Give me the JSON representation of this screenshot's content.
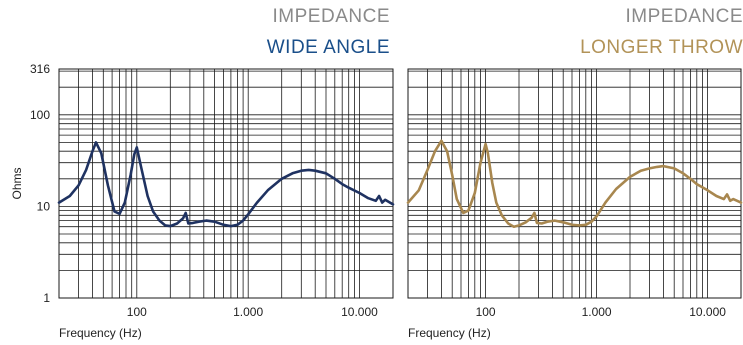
{
  "chart_data": [
    {
      "type": "line",
      "title": "IMPEDANCE",
      "subtitle": "WIDE ANGLE",
      "color": "#1f3261",
      "subtitle_color": "#1a4f8a",
      "xlabel": "Frequency (Hz)",
      "ylabel": "Ohms",
      "xscale": "log",
      "yscale": "log",
      "xlim": [
        20,
        20000
      ],
      "ylim": [
        1,
        316
      ],
      "x_ticks": [
        {
          "value": 100,
          "label": "100"
        },
        {
          "value": 1000,
          "label": "1.000"
        },
        {
          "value": 10000,
          "label": "10.000"
        }
      ],
      "y_ticks": [
        {
          "value": 1,
          "label": "1"
        },
        {
          "value": 10,
          "label": "10"
        },
        {
          "value": 100,
          "label": "100"
        },
        {
          "value": 316,
          "label": "316"
        }
      ],
      "grid": true,
      "series": [
        {
          "x": [
            20,
            25,
            30,
            35,
            40,
            43,
            48,
            55,
            63,
            70,
            78,
            88,
            95,
            100,
            110,
            125,
            140,
            160,
            180,
            200,
            230,
            260,
            275,
            290,
            320,
            360,
            420,
            500,
            600,
            700,
            800,
            900,
            1000,
            1200,
            1500,
            2000,
            2500,
            3000,
            3500,
            4000,
            5000,
            6000,
            7000,
            8000,
            10000,
            12000,
            14000,
            15000,
            16000,
            17000,
            20000
          ],
          "y": [
            11,
            13,
            17,
            25,
            40,
            50,
            38,
            17,
            8.8,
            8.3,
            11,
            22,
            37,
            44,
            26,
            13,
            8.8,
            7,
            6.2,
            6.1,
            6.5,
            7.4,
            8.5,
            6.5,
            6.6,
            6.8,
            7,
            6.8,
            6.3,
            6.1,
            6.3,
            7,
            8.2,
            11,
            15,
            20,
            23,
            24.5,
            25,
            24.5,
            23,
            20,
            17.5,
            16,
            14,
            12.3,
            11.5,
            13,
            11,
            11.8,
            10.5
          ]
        }
      ]
    },
    {
      "type": "line",
      "title": "IMPEDANCE",
      "subtitle": "LONGER THROW",
      "color": "#a8874f",
      "subtitle_color": "#b29358",
      "xlabel": "Frequency (Hz)",
      "ylabel": "",
      "xscale": "log",
      "yscale": "log",
      "xlim": [
        20,
        20000
      ],
      "ylim": [
        1,
        316
      ],
      "x_ticks": [
        {
          "value": 100,
          "label": "100"
        },
        {
          "value": 1000,
          "label": "1.000"
        },
        {
          "value": 10000,
          "label": "10.000"
        }
      ],
      "y_ticks": [],
      "grid": true,
      "series": [
        {
          "x": [
            20,
            25,
            30,
            35,
            40,
            45,
            50,
            55,
            63,
            70,
            80,
            90,
            100,
            105,
            115,
            125,
            140,
            160,
            180,
            200,
            230,
            260,
            275,
            290,
            320,
            360,
            420,
            500,
            600,
            700,
            800,
            900,
            1000,
            1200,
            1500,
            2000,
            2500,
            3000,
            3500,
            4000,
            5000,
            6000,
            7000,
            8000,
            10000,
            12000,
            14000,
            15000,
            16000,
            17000,
            20000
          ],
          "y": [
            11,
            15,
            25,
            40,
            52,
            40,
            22,
            12,
            8.5,
            9,
            14,
            30,
            48,
            38,
            18,
            11,
            8,
            6.5,
            6,
            6.2,
            6.7,
            7.5,
            8.5,
            6.6,
            6.5,
            6.8,
            7,
            6.7,
            6.3,
            6.2,
            6.3,
            6.8,
            7.8,
            11,
            15.5,
            21,
            24.5,
            26,
            27,
            27.5,
            26,
            23,
            20,
            17.5,
            15,
            13,
            12,
            13.5,
            11.5,
            12,
            11
          ]
        }
      ]
    }
  ]
}
